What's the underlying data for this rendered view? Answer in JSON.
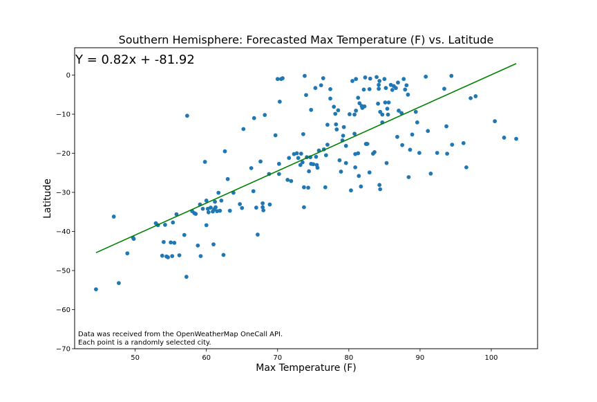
{
  "chart_data": {
    "type": "scatter",
    "title": "Southern Hemisphere: Forecasted Max Temperature (F) vs. Latitude",
    "xlabel": "Max Temperature (F)",
    "ylabel": "Latitude",
    "xlim": [
      41.5,
      106.5
    ],
    "ylim": [
      -70,
      7
    ],
    "xticks": [
      50,
      60,
      70,
      80,
      90,
      100
    ],
    "yticks": [
      0,
      -10,
      -20,
      -30,
      -40,
      -50,
      -60,
      -70
    ],
    "xtick_labels": [
      "50",
      "60",
      "70",
      "80",
      "90",
      "100"
    ],
    "ytick_labels": [
      "0",
      "−10",
      "−20",
      "−30",
      "−40",
      "−50",
      "−60",
      "−70"
    ],
    "grid": false,
    "equation": "Y = 0.82x + -81.92",
    "annotation_lines": [
      "Data was received from the OpenWeatherMap OneCall API.",
      "Each point is a randomly selected city."
    ],
    "point_color": "#1f77b4",
    "line_color": "#008000",
    "regression": {
      "slope": 0.82,
      "intercept": -81.92,
      "x_start": 44.5,
      "x_end": 103.5
    },
    "points": [
      [
        44.5,
        -54.8
      ],
      [
        47.0,
        -36.2
      ],
      [
        47.7,
        -53.2
      ],
      [
        48.9,
        -45.6
      ],
      [
        49.7,
        -41.6
      ],
      [
        49.8,
        -41.9
      ],
      [
        52.9,
        -37.9
      ],
      [
        53.2,
        -38.4
      ],
      [
        53.8,
        -46.2
      ],
      [
        54.0,
        -42.7
      ],
      [
        54.2,
        -38.3
      ],
      [
        54.4,
        -46.4
      ],
      [
        54.6,
        -46.6
      ],
      [
        55.0,
        -42.8
      ],
      [
        55.2,
        -46.3
      ],
      [
        55.3,
        -37.7
      ],
      [
        55.5,
        -42.9
      ],
      [
        55.8,
        -35.6
      ],
      [
        56.2,
        -46.1
      ],
      [
        56.9,
        -40.9
      ],
      [
        57.2,
        -51.6
      ],
      [
        57.3,
        -10.4
      ],
      [
        58.0,
        -34.8
      ],
      [
        58.3,
        -35.3
      ],
      [
        58.5,
        -35.5
      ],
      [
        58.8,
        -43.6
      ],
      [
        59.1,
        -33.1
      ],
      [
        59.2,
        -46.3
      ],
      [
        59.5,
        -34.2
      ],
      [
        59.8,
        -22.2
      ],
      [
        60.0,
        -32.1
      ],
      [
        60.0,
        -38.4
      ],
      [
        60.2,
        -34.2
      ],
      [
        60.3,
        -35.1
      ],
      [
        60.6,
        -33.9
      ],
      [
        60.9,
        -34.9
      ],
      [
        61.0,
        -43.3
      ],
      [
        61.1,
        -34.3
      ],
      [
        61.2,
        -32.4
      ],
      [
        61.3,
        -33.8
      ],
      [
        61.5,
        -34.8
      ],
      [
        61.7,
        -30.1
      ],
      [
        61.9,
        -34.7
      ],
      [
        62.1,
        -32.1
      ],
      [
        62.4,
        -46.0
      ],
      [
        62.6,
        -19.5
      ],
      [
        63.0,
        -26.6
      ],
      [
        63.3,
        -34.7
      ],
      [
        63.8,
        -30.1
      ],
      [
        64.7,
        -33.0
      ],
      [
        65.0,
        -34.0
      ],
      [
        65.2,
        -13.8
      ],
      [
        66.3,
        -23.8
      ],
      [
        66.6,
        -29.7
      ],
      [
        66.7,
        -11.0
      ],
      [
        67.0,
        -33.9
      ],
      [
        67.2,
        -40.8
      ],
      [
        67.6,
        -22.1
      ],
      [
        67.9,
        -32.8
      ],
      [
        67.9,
        -33.8
      ],
      [
        68.0,
        -34.6
      ],
      [
        68.2,
        -10.2
      ],
      [
        68.8,
        -25.3
      ],
      [
        68.9,
        -33.1
      ],
      [
        69.7,
        -15.4
      ],
      [
        70.0,
        -1.0
      ],
      [
        70.2,
        -25.3
      ],
      [
        70.2,
        -22.7
      ],
      [
        70.3,
        -6.8
      ],
      [
        70.5,
        -1.0
      ],
      [
        70.7,
        -0.8
      ],
      [
        71.4,
        -26.8
      ],
      [
        71.6,
        -21.2
      ],
      [
        71.9,
        -27.1
      ],
      [
        72.3,
        -20.2
      ],
      [
        72.7,
        -20.0
      ],
      [
        72.9,
        -21.2
      ],
      [
        73.2,
        -23.0
      ],
      [
        73.3,
        -20.1
      ],
      [
        73.5,
        -22.3
      ],
      [
        73.6,
        -15.1
      ],
      [
        73.7,
        -33.8
      ],
      [
        73.7,
        -28.7
      ],
      [
        73.8,
        -0.2
      ],
      [
        74.0,
        -5.1
      ],
      [
        74.1,
        -21.0
      ],
      [
        74.3,
        -28.8
      ],
      [
        74.4,
        -24.6
      ],
      [
        74.6,
        -21.0
      ],
      [
        74.7,
        -22.7
      ],
      [
        74.7,
        -8.9
      ],
      [
        75.0,
        -22.8
      ],
      [
        75.3,
        -3.3
      ],
      [
        75.4,
        -20.9
      ],
      [
        75.5,
        -23.0
      ],
      [
        75.6,
        -23.7
      ],
      [
        75.8,
        -19.3
      ],
      [
        76.1,
        -2.6
      ],
      [
        76.4,
        -0.8
      ],
      [
        76.5,
        -19.0
      ],
      [
        76.7,
        -28.7
      ],
      [
        76.8,
        -20.5
      ],
      [
        77.0,
        -17.8
      ],
      [
        77.0,
        -12.7
      ],
      [
        77.4,
        -3.6
      ],
      [
        77.4,
        -6.0
      ],
      [
        77.9,
        -8.1
      ],
      [
        78.1,
        -9.9
      ],
      [
        78.2,
        -12.6
      ],
      [
        78.3,
        -13.9
      ],
      [
        78.5,
        -9.0
      ],
      [
        78.7,
        -21.8
      ],
      [
        78.9,
        -24.7
      ],
      [
        79.1,
        -16.7
      ],
      [
        79.2,
        -15.5
      ],
      [
        79.3,
        -13.3
      ],
      [
        79.6,
        -18.1
      ],
      [
        79.6,
        -22.5
      ],
      [
        80.1,
        -10.0
      ],
      [
        80.3,
        -29.5
      ],
      [
        80.5,
        -1.5
      ],
      [
        80.8,
        -10.1
      ],
      [
        80.8,
        -15.0
      ],
      [
        80.9,
        -20.2
      ],
      [
        80.9,
        -23.6
      ],
      [
        81.0,
        -9.1
      ],
      [
        81.0,
        -1.0
      ],
      [
        81.3,
        -5.8
      ],
      [
        81.3,
        -20.0
      ],
      [
        81.4,
        -25.8
      ],
      [
        81.5,
        -7.2
      ],
      [
        81.7,
        -28.5
      ],
      [
        81.8,
        -7.9
      ],
      [
        81.9,
        -8.4
      ],
      [
        82.1,
        -3.7
      ],
      [
        82.2,
        -8.0
      ],
      [
        82.3,
        -0.6
      ],
      [
        82.4,
        -17.6
      ],
      [
        82.5,
        -17.6
      ],
      [
        82.6,
        -17.6
      ],
      [
        82.9,
        -24.9
      ],
      [
        82.9,
        -3.6
      ],
      [
        83.0,
        -0.9
      ],
      [
        83.4,
        -20.1
      ],
      [
        83.6,
        -19.7
      ],
      [
        83.9,
        -0.5
      ],
      [
        84.1,
        -7.3
      ],
      [
        84.2,
        -3.5
      ],
      [
        84.2,
        -2.5
      ],
      [
        84.3,
        -28.1
      ],
      [
        84.3,
        -1.5
      ],
      [
        84.4,
        -9.4
      ],
      [
        84.4,
        -29.2
      ],
      [
        84.7,
        -12.1
      ],
      [
        84.7,
        -10.1
      ],
      [
        85.0,
        -1.0
      ],
      [
        85.1,
        -7.0
      ],
      [
        85.2,
        -3.3
      ],
      [
        85.3,
        -22.5
      ],
      [
        85.4,
        -8.6
      ],
      [
        85.5,
        -10.1
      ],
      [
        85.6,
        -7.0
      ],
      [
        85.9,
        -2.5
      ],
      [
        86.1,
        -3.8
      ],
      [
        86.3,
        -2.8
      ],
      [
        86.6,
        -3.3
      ],
      [
        86.8,
        -15.8
      ],
      [
        86.9,
        -1.9
      ],
      [
        87.0,
        -9.1
      ],
      [
        87.4,
        -9.7
      ],
      [
        87.5,
        -17.9
      ],
      [
        87.7,
        -1.0
      ],
      [
        87.9,
        -3.7
      ],
      [
        88.1,
        -2.6
      ],
      [
        88.3,
        -5.0
      ],
      [
        88.4,
        -26.1
      ],
      [
        88.6,
        -19.1
      ],
      [
        88.9,
        -15.2
      ],
      [
        89.4,
        -9.4
      ],
      [
        89.6,
        -12.1
      ],
      [
        89.9,
        -19.9
      ],
      [
        90.8,
        -0.4
      ],
      [
        91.1,
        -14.3
      ],
      [
        91.5,
        -25.2
      ],
      [
        92.4,
        -19.9
      ],
      [
        93.4,
        -3.5
      ],
      [
        93.7,
        -13.1
      ],
      [
        93.8,
        -20.1
      ],
      [
        94.4,
        -0.2
      ],
      [
        94.5,
        -17.8
      ],
      [
        96.1,
        -17.4
      ],
      [
        96.5,
        -23.6
      ],
      [
        97.1,
        -5.9
      ],
      [
        97.8,
        -5.4
      ],
      [
        100.5,
        -11.8
      ],
      [
        101.8,
        -16.0
      ],
      [
        103.5,
        -16.3
      ]
    ]
  }
}
